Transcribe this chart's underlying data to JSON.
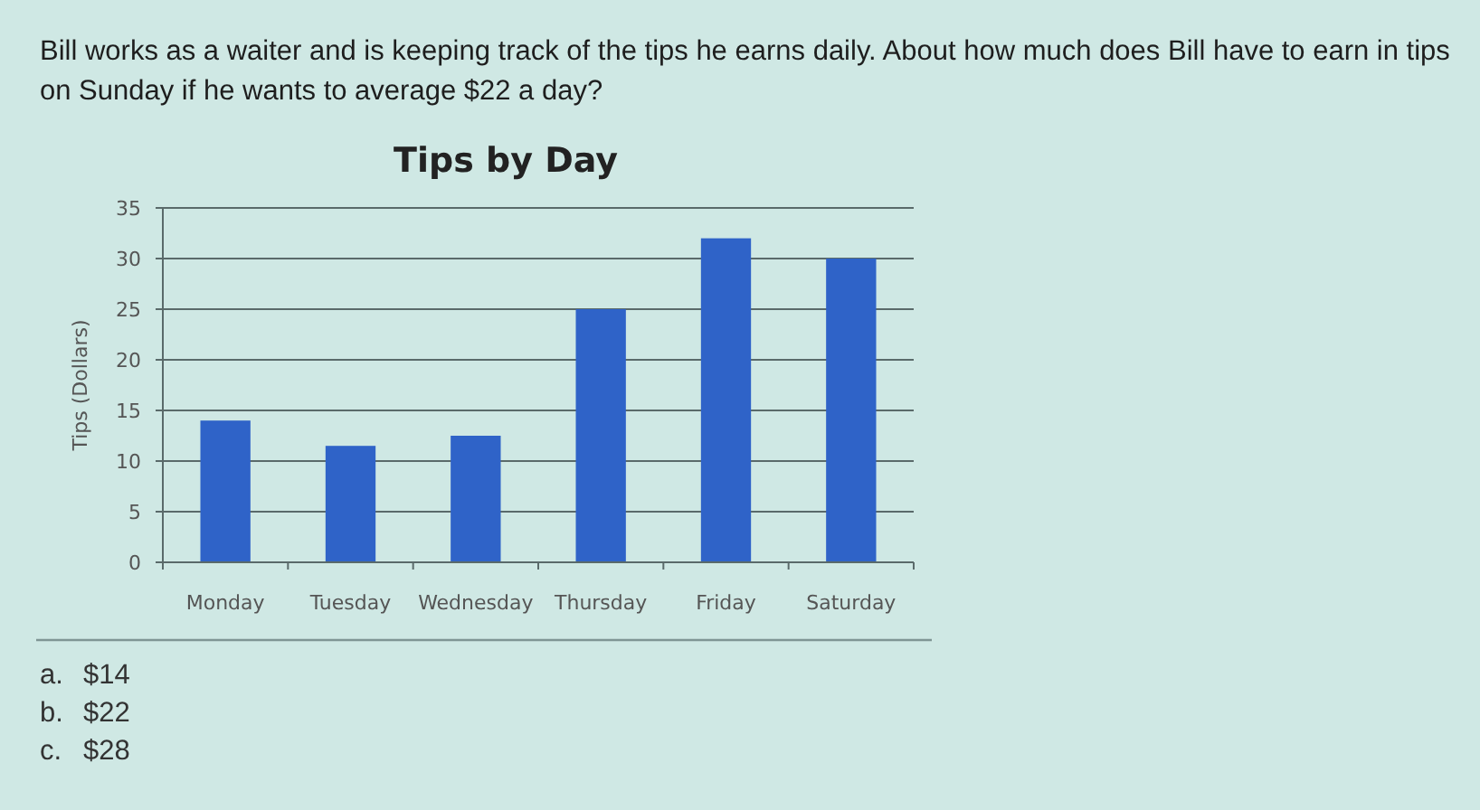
{
  "chart_data": {
    "type": "bar",
    "title": "Tips by Day",
    "ylabel": "Tips (Dollars)",
    "annotations": [
      "Bill works as a waiter and is keeping track of the tips he earns daily. About how much does Bill have to earn in tips on Sunday if he wants to average $22 a day?",
      "a. $14",
      "b. $22",
      "c. $28"
    ],
    "categories": [
      "Monday",
      "Tuesday",
      "Wednesday",
      "Thursday",
      "Friday",
      "Saturday"
    ],
    "values": [
      14,
      11.5,
      12.5,
      25,
      32,
      30
    ],
    "color": "#2f63c8",
    "ylim": [
      0,
      35
    ],
    "yticks": [
      0,
      5,
      10,
      15,
      20,
      25,
      30,
      35
    ],
    "grid": "y"
  }
}
